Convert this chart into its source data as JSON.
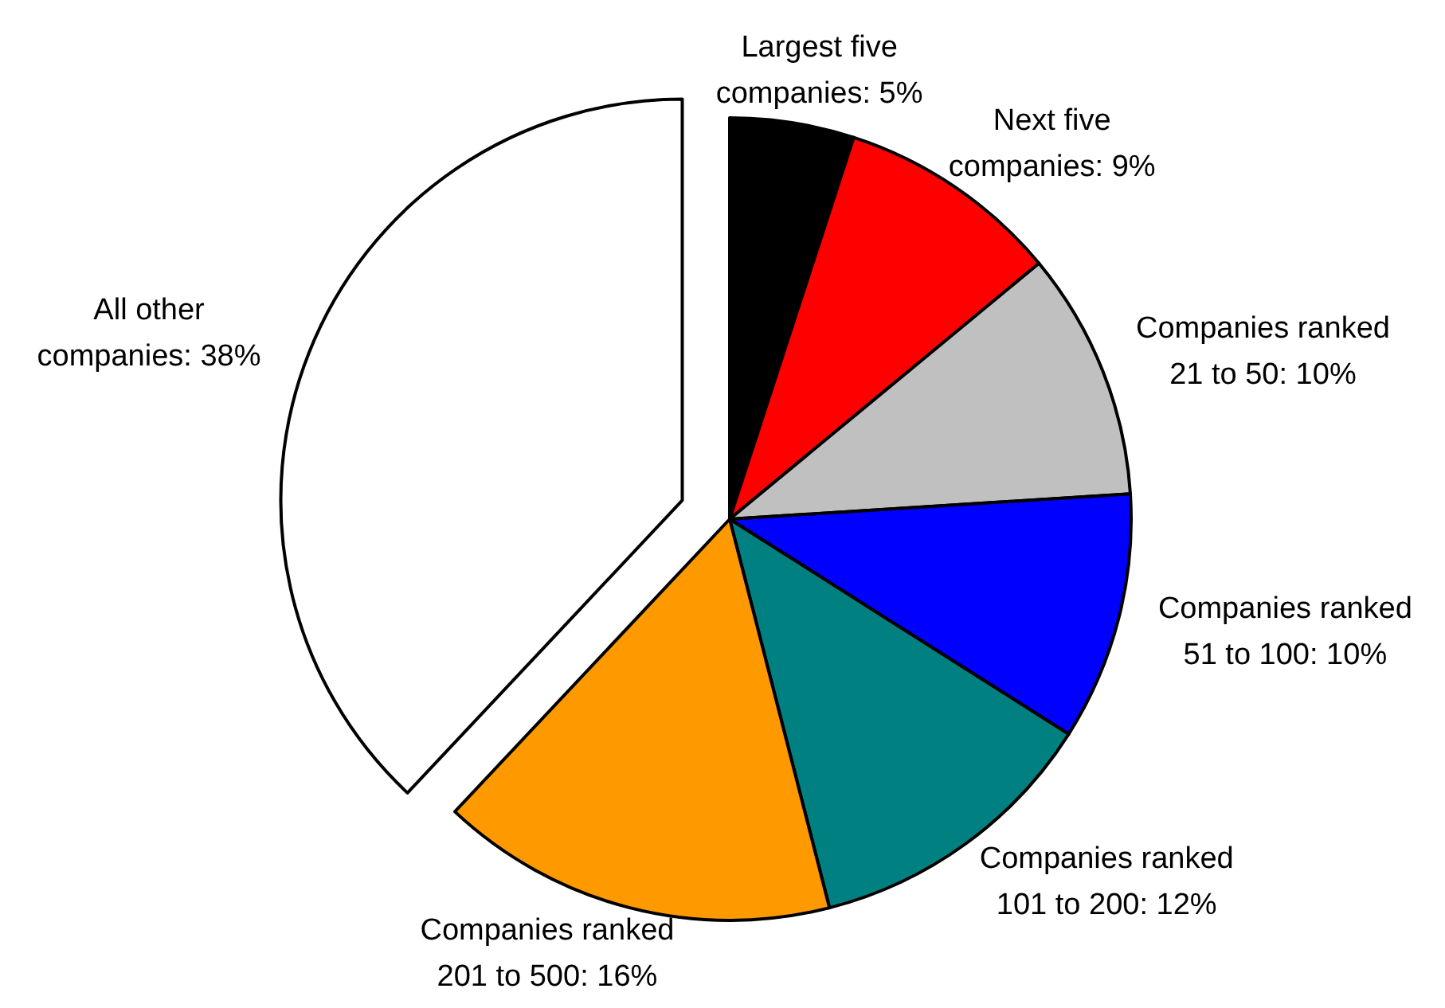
{
  "chart_data": {
    "type": "pie",
    "categories": [
      "Largest five companies: 5%",
      "Next five companies: 9%",
      "Companies ranked 21 to 50: 10%",
      "Companies ranked 51 to 100: 10%",
      "Companies ranked 101 to 200: 12%",
      "Companies ranked 201 to 500: 16%",
      "All other companies: 38%"
    ],
    "values": [
      5,
      9,
      10,
      10,
      12,
      16,
      38
    ],
    "colors": [
      "#000000",
      "#ff0000",
      "#c0c0c0",
      "#0000ff",
      "#008080",
      "#ff9900",
      "#ffffff"
    ]
  }
}
